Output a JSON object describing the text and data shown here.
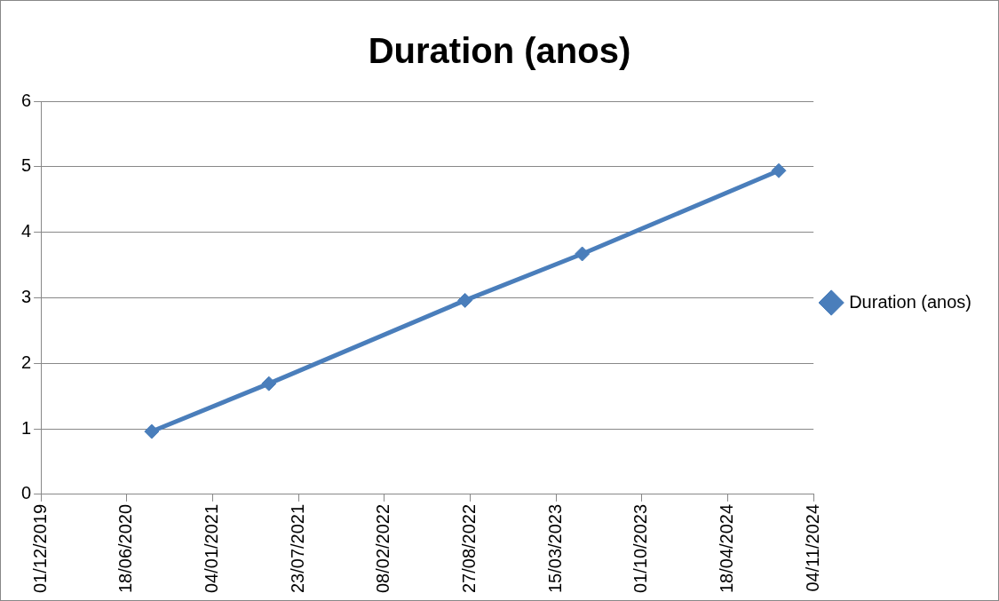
{
  "chart_data": {
    "type": "line",
    "title": "Duration (anos)",
    "x": [
      "2020-08-15",
      "2021-05-15",
      "2022-08-15",
      "2023-05-15",
      "2024-08-15"
    ],
    "series": [
      {
        "name": "Duration (anos)",
        "color": "#4a7ebb",
        "values": [
          0.96,
          1.69,
          2.96,
          3.67,
          4.94
        ]
      }
    ],
    "xlim": [
      "2019-12-01",
      "2024-11-04"
    ],
    "xticks": [
      {
        "value": "2019-12-01",
        "label": "01/12/2019"
      },
      {
        "value": "2020-06-18",
        "label": "18/06/2020"
      },
      {
        "value": "2021-01-04",
        "label": "04/01/2021"
      },
      {
        "value": "2021-07-23",
        "label": "23/07/2021"
      },
      {
        "value": "2022-02-08",
        "label": "08/02/2022"
      },
      {
        "value": "2022-08-27",
        "label": "27/08/2022"
      },
      {
        "value": "2023-03-15",
        "label": "15/03/2023"
      },
      {
        "value": "2023-10-01",
        "label": "01/10/2023"
      },
      {
        "value": "2024-04-18",
        "label": "18/04/2024"
      },
      {
        "value": "2024-11-04",
        "label": "04/11/2024"
      }
    ],
    "ylim": [
      0,
      6
    ],
    "yticks": [
      0,
      1,
      2,
      3,
      4,
      5,
      6
    ],
    "grid": "y",
    "legend": "right",
    "marker": "diamond",
    "line_style": "solid"
  }
}
